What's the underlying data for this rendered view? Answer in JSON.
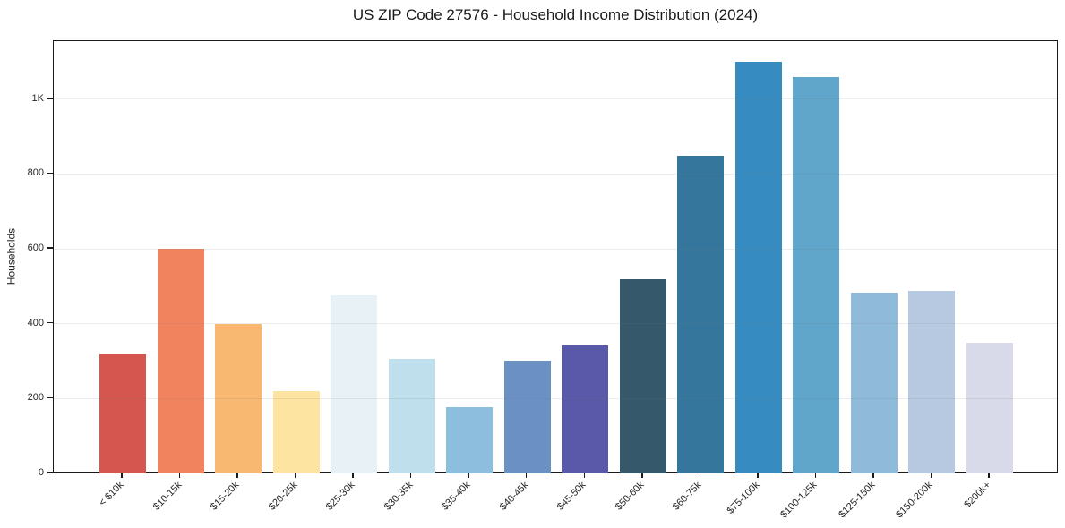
{
  "figure": {
    "title": "US ZIP Code 27576 - Household Income Distribution (2024)"
  },
  "chart_data": {
    "type": "bar",
    "title": "US ZIP Code 27576 - Household Income Distribution (2024)",
    "xlabel": "",
    "ylabel": "Households",
    "categories": [
      "< $10k",
      "$10-15k",
      "$15-20k",
      "$20-25k",
      "$25-30k",
      "$30-35k",
      "$35-40k",
      "$40-45k",
      "$45-50k",
      "$50-60k",
      "$60-75k",
      "$75-100k",
      "$100-125k",
      "$125-150k",
      "$150-200k",
      "$200k+"
    ],
    "values": [
      317,
      600,
      400,
      219,
      477,
      305,
      178,
      302,
      343,
      520,
      849,
      1100,
      1060,
      483,
      487,
      350
    ],
    "bar_colors": [
      "#d5554f",
      "#f1835f",
      "#f9b872",
      "#fde4a1",
      "#e8f2f6",
      "#bfdfec",
      "#8ebedd",
      "#6a90c4",
      "#5a59a9",
      "#35596b",
      "#35779c",
      "#368cc0",
      "#5fa6ca",
      "#90bada",
      "#b7c9e0",
      "#d8daea"
    ],
    "ylim": [
      0,
      1155
    ],
    "yticks": [
      {
        "value": 0,
        "label": "0"
      },
      {
        "value": 200,
        "label": "200"
      },
      {
        "value": 400,
        "label": "400"
      },
      {
        "value": 600,
        "label": "600"
      },
      {
        "value": 800,
        "label": "800"
      },
      {
        "value": 1000,
        "label": "1K"
      }
    ],
    "grid": "horizontal",
    "grid_color": "rgba(120,120,120,0.14)",
    "axis_color": "#1a1a1a",
    "background": "#ffffff",
    "legend": "none"
  }
}
